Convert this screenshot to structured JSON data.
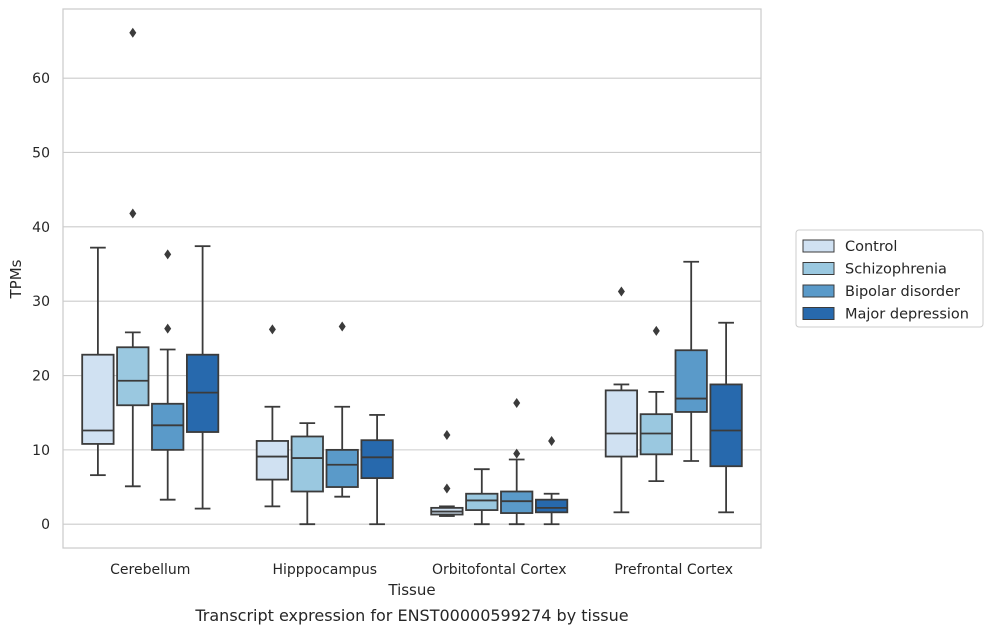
{
  "chart_data": {
    "type": "box",
    "title": "",
    "caption": "Transcript expression for ENST00000599274 by tissue",
    "xlabel": "Tissue",
    "ylabel": "TPMs",
    "ylim": [
      -3.2,
      69.3
    ],
    "yticks": [
      0,
      10,
      20,
      30,
      40,
      50,
      60
    ],
    "grid": true,
    "legend_position": "right",
    "categories": [
      "Cerebellum",
      "Hipppocampus",
      "Orbitofontal Cortex",
      "Prefrontal Cortex"
    ],
    "series": [
      {
        "name": "Control",
        "color": "#d0e1f2",
        "boxes": [
          {
            "whislo": 6.6,
            "q1": 10.8,
            "med": 12.6,
            "q3": 22.8,
            "whishi": 37.2,
            "fliers": []
          },
          {
            "whislo": 2.4,
            "q1": 6.0,
            "med": 9.1,
            "q3": 11.2,
            "whishi": 15.8,
            "fliers": [
              26.2
            ]
          },
          {
            "whislo": 1.1,
            "q1": 1.3,
            "med": 1.7,
            "q3": 2.2,
            "whishi": 2.4,
            "fliers": [
              12.0,
              4.8
            ]
          },
          {
            "whislo": 1.6,
            "q1": 9.1,
            "med": 12.2,
            "q3": 18.0,
            "whishi": 18.8,
            "fliers": [
              31.3
            ]
          }
        ]
      },
      {
        "name": "Schizophrenia",
        "color": "#9ac8e0",
        "boxes": [
          {
            "whislo": 5.1,
            "q1": 16.0,
            "med": 19.3,
            "q3": 23.8,
            "whishi": 25.8,
            "fliers": [
              66.1,
              41.8
            ]
          },
          {
            "whislo": 0.0,
            "q1": 4.4,
            "med": 8.9,
            "q3": 11.8,
            "whishi": 13.6,
            "fliers": []
          },
          {
            "whislo": 0.0,
            "q1": 1.9,
            "med": 3.2,
            "q3": 4.1,
            "whishi": 7.4,
            "fliers": []
          },
          {
            "whislo": 5.8,
            "q1": 9.4,
            "med": 12.2,
            "q3": 14.8,
            "whishi": 17.8,
            "fliers": [
              26.0
            ]
          }
        ]
      },
      {
        "name": "Bipolar disorder",
        "color": "#5a9ac9",
        "boxes": [
          {
            "whislo": 3.3,
            "q1": 10.0,
            "med": 13.3,
            "q3": 16.2,
            "whishi": 23.5,
            "fliers": [
              36.3,
              26.3
            ]
          },
          {
            "whislo": 3.7,
            "q1": 5.0,
            "med": 8.0,
            "q3": 10.0,
            "whishi": 15.8,
            "fliers": [
              26.6
            ]
          },
          {
            "whislo": 0.0,
            "q1": 1.5,
            "med": 3.1,
            "q3": 4.4,
            "whishi": 8.7,
            "fliers": [
              16.3,
              9.5
            ]
          },
          {
            "whislo": 8.5,
            "q1": 15.1,
            "med": 16.9,
            "q3": 23.4,
            "whishi": 35.3,
            "fliers": []
          }
        ]
      },
      {
        "name": "Major depression",
        "color": "#2769ad",
        "boxes": [
          {
            "whislo": 2.1,
            "q1": 12.4,
            "med": 17.7,
            "q3": 22.8,
            "whishi": 37.4,
            "fliers": []
          },
          {
            "whislo": 0.0,
            "q1": 6.2,
            "med": 9.0,
            "q3": 11.3,
            "whishi": 14.7,
            "fliers": []
          },
          {
            "whislo": 0.0,
            "q1": 1.6,
            "med": 2.2,
            "q3": 3.3,
            "whishi": 4.1,
            "fliers": [
              11.2
            ]
          },
          {
            "whislo": 1.6,
            "q1": 7.8,
            "med": 12.6,
            "q3": 18.8,
            "whishi": 27.1,
            "fliers": []
          }
        ]
      }
    ]
  }
}
